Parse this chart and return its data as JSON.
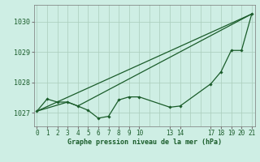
{
  "background_color": "#ceeee4",
  "grid_color": "#aaccbb",
  "line_color": "#1a5c2a",
  "title": "Graphe pression niveau de la mer (hPa)",
  "ylabel_ticks": [
    1027,
    1028,
    1029,
    1030
  ],
  "line1_x": [
    0,
    1,
    2,
    3,
    4,
    5,
    6,
    7,
    8,
    9,
    10,
    13,
    14,
    17,
    18,
    19,
    20,
    21
  ],
  "line1_y": [
    1027.05,
    1027.45,
    1027.35,
    1027.35,
    1027.22,
    1027.08,
    1026.82,
    1026.88,
    1027.42,
    1027.52,
    1027.52,
    1027.18,
    1027.22,
    1027.95,
    1028.35,
    1029.05,
    1029.05,
    1030.25
  ],
  "line2_x": [
    0,
    3,
    4,
    21
  ],
  "line2_y": [
    1027.05,
    1027.35,
    1027.22,
    1030.25
  ],
  "line3_x": [
    0,
    21
  ],
  "line3_y": [
    1027.05,
    1030.25
  ],
  "ylim": [
    1026.55,
    1030.55
  ],
  "xlim": [
    -0.3,
    21.3
  ]
}
